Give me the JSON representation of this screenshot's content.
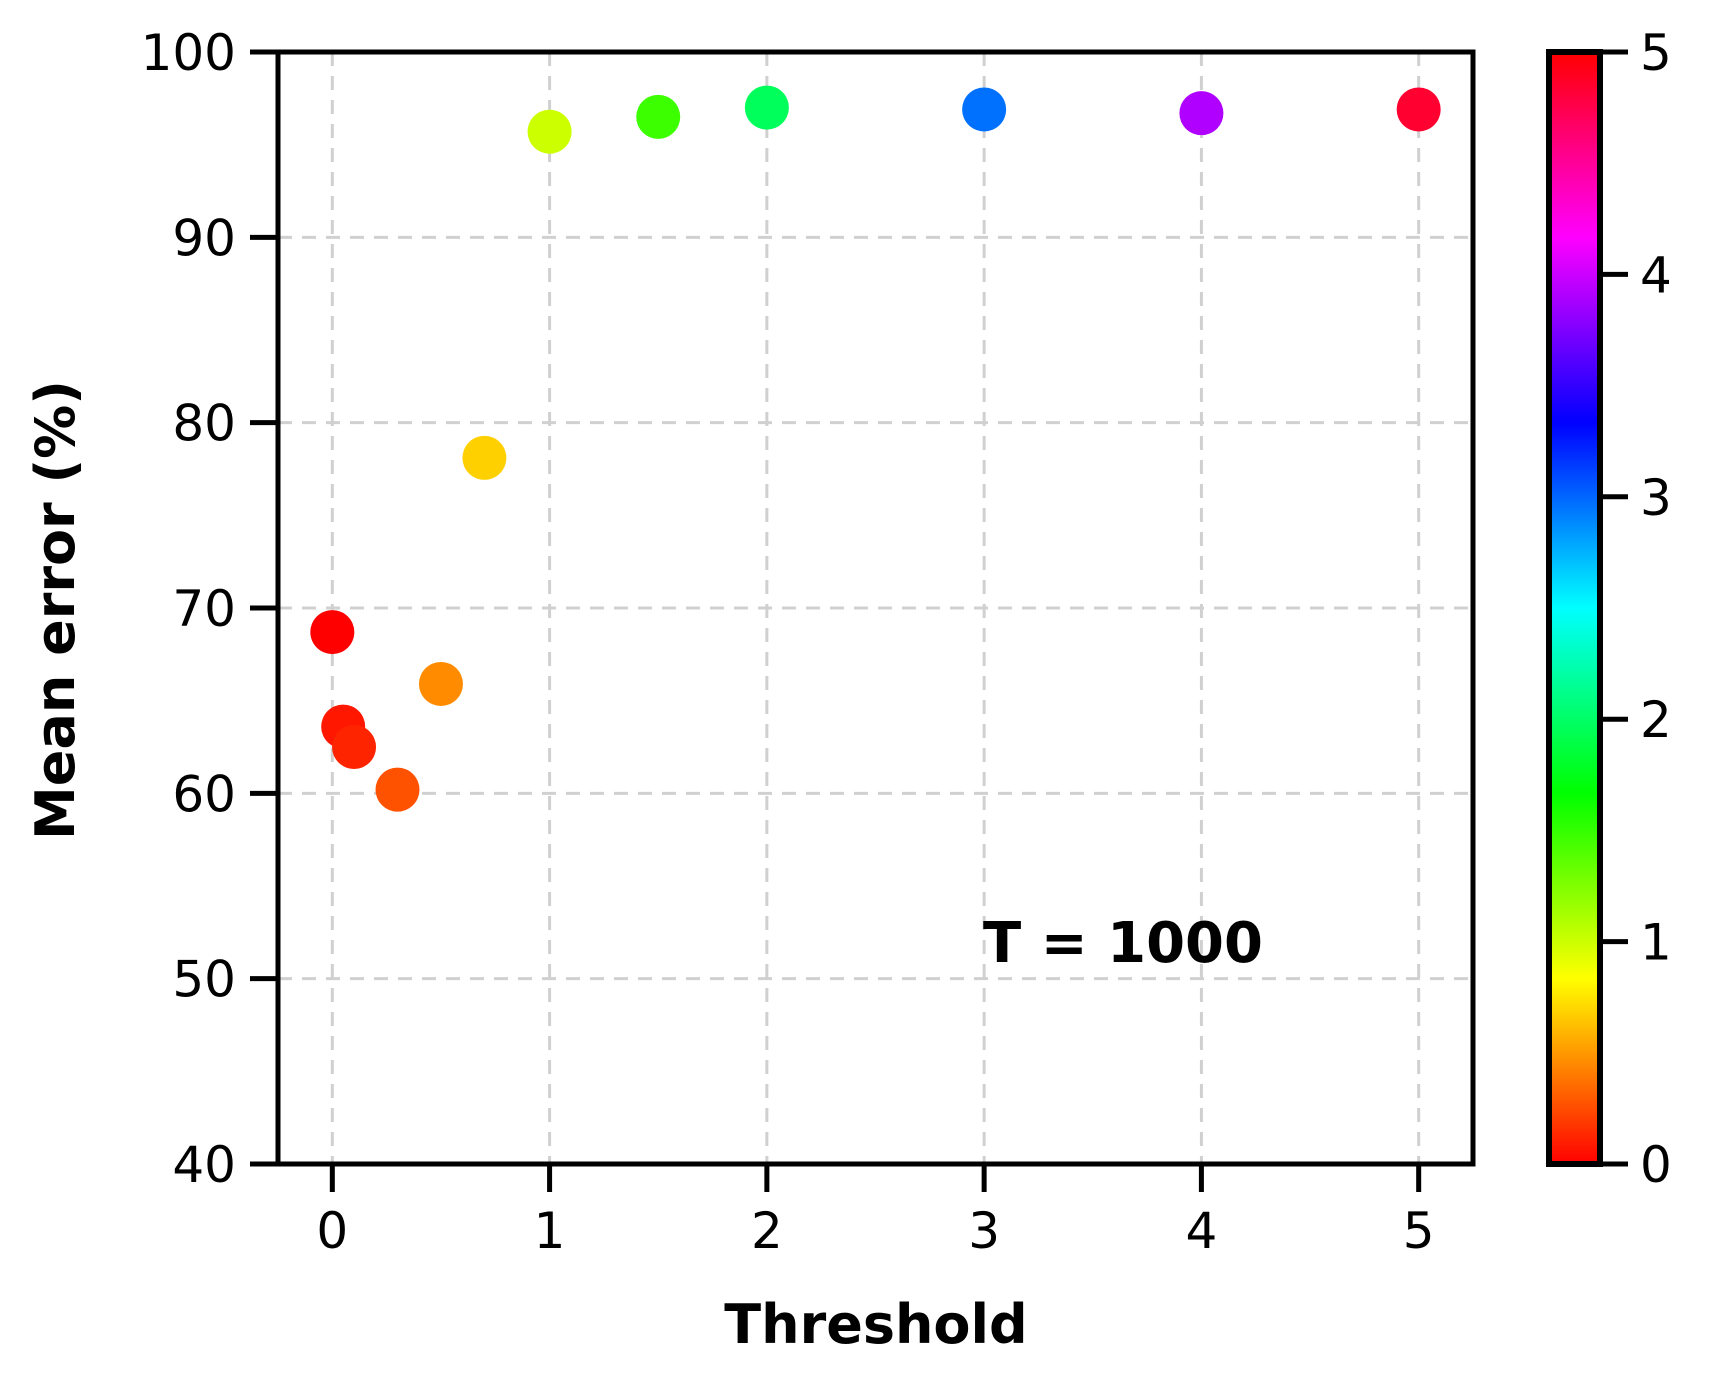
{
  "chart_data": {
    "type": "scatter",
    "xlabel": "Threshold",
    "ylabel": "Mean error (%)",
    "annotation": "T = 1000",
    "xlim": [
      -0.25,
      5.25
    ],
    "ylim": [
      40,
      100
    ],
    "xticks": [
      "0",
      "1",
      "2",
      "3",
      "4",
      "5"
    ],
    "yticks": [
      "40",
      "50",
      "60",
      "70",
      "80",
      "90",
      "100"
    ],
    "grid": true,
    "colormap": "hsv",
    "colorbar": {
      "range": [
        0,
        5
      ],
      "ticks": [
        "0",
        "1",
        "2",
        "3",
        "4",
        "5"
      ]
    },
    "points": [
      {
        "x": 0.0,
        "y": 68.7,
        "color": "#ff0000"
      },
      {
        "x": 0.05,
        "y": 63.6,
        "color": "#ff1700"
      },
      {
        "x": 0.1,
        "y": 62.5,
        "color": "#ff2400"
      },
      {
        "x": 0.3,
        "y": 60.2,
        "color": "#ff5200"
      },
      {
        "x": 0.5,
        "y": 65.9,
        "color": "#ff8c00"
      },
      {
        "x": 0.7,
        "y": 78.1,
        "color": "#ffd000"
      },
      {
        "x": 1.0,
        "y": 95.7,
        "color": "#ccff00"
      },
      {
        "x": 1.5,
        "y": 96.5,
        "color": "#3cff00"
      },
      {
        "x": 2.0,
        "y": 97.0,
        "color": "#00ff5a"
      },
      {
        "x": 3.0,
        "y": 96.9,
        "color": "#0070ff"
      },
      {
        "x": 4.0,
        "y": 96.7,
        "color": "#b000ff"
      },
      {
        "x": 5.0,
        "y": 96.9,
        "color": "#ff0030"
      }
    ]
  }
}
